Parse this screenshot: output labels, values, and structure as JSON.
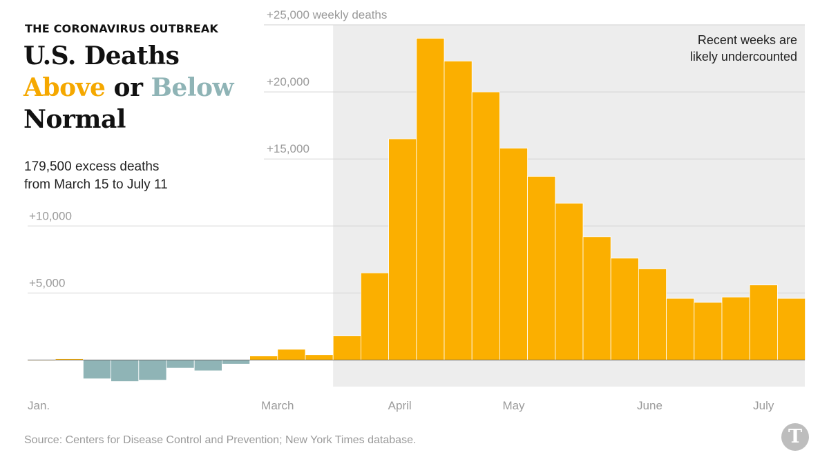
{
  "header": {
    "kicker": "THE CORONAVIRUS OUTBREAK",
    "title_line1": "U.S. Deaths",
    "title_above": "Above",
    "title_or": " or ",
    "title_below": "Below",
    "title_line3": "Normal"
  },
  "subhead": {
    "line1": "179,500 excess deaths",
    "line2": "from March 15 to July 11"
  },
  "source": "Source: Centers for Disease Control and Prevention; New York Times database.",
  "logo": {
    "icon": "nyt-logo-icon",
    "glyph": "T"
  },
  "colors": {
    "above": "#fbaf00",
    "below": "#8fb4b6",
    "shade": "#ededed",
    "grid": "#d2d2d2",
    "axis_text": "#9a9a9a"
  },
  "chart_data": {
    "type": "bar",
    "title": "U.S. Deaths Above or Below Normal",
    "ylabel": "weekly deaths",
    "ylim": [
      -2000,
      25000
    ],
    "yticks": [
      {
        "value": 5000,
        "label": "+5,000"
      },
      {
        "value": 10000,
        "label": "+10,000"
      },
      {
        "value": 15000,
        "label": "+15,000"
      },
      {
        "value": 20000,
        "label": "+20,000"
      },
      {
        "value": 25000,
        "label": "+25,000 weekly deaths"
      }
    ],
    "xticks": [
      {
        "week": 0,
        "label": "Jan."
      },
      {
        "week": 9,
        "label": "March"
      },
      {
        "week": 13.4,
        "label": "April"
      },
      {
        "week": 17.5,
        "label": "May"
      },
      {
        "week": 22.4,
        "label": "June"
      },
      {
        "week": 26.5,
        "label": "July"
      }
    ],
    "values": [
      0,
      100,
      -1400,
      -1600,
      -1500,
      -600,
      -800,
      -300,
      300,
      800,
      400,
      1800,
      6500,
      16500,
      24000,
      22300,
      20000,
      15800,
      13700,
      11700,
      9200,
      7600,
      6800,
      4600,
      4300,
      4700,
      5600,
      4600
    ],
    "shaded_from_week": 11,
    "shaded_note": [
      "Recent weeks are",
      "likely undercounted"
    ],
    "grid": true,
    "legend": "none"
  }
}
